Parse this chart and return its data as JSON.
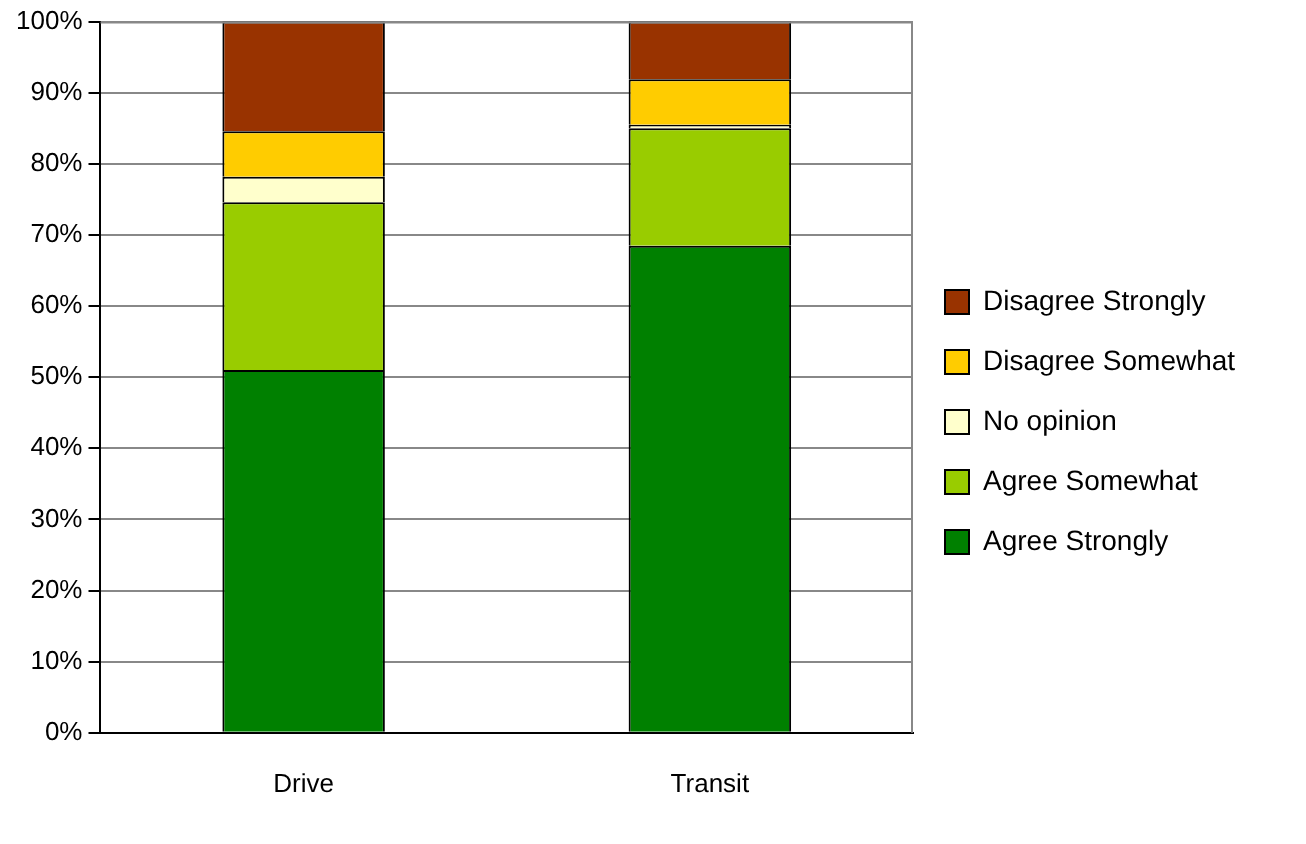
{
  "chart_data": {
    "type": "bar",
    "stacked": true,
    "categories": [
      "Drive",
      "Transit"
    ],
    "series": [
      {
        "name": "Agree Strongly",
        "color": "#008000",
        "values": [
          51,
          68.5
        ]
      },
      {
        "name": "Agree Somewhat",
        "color": "#99cc00",
        "values": [
          23.6,
          16.5
        ]
      },
      {
        "name": "No opinion",
        "color": "#ffffcc",
        "values": [
          3.6,
          0.5
        ]
      },
      {
        "name": "Disagree Somewhat",
        "color": "#ffcc00",
        "values": [
          6.4,
          6.4
        ]
      },
      {
        "name": "Disagree Strongly",
        "color": "#993300",
        "values": [
          15.4,
          8.1
        ]
      }
    ],
    "ylim": [
      0,
      100
    ],
    "yticks": [
      {
        "value": 0,
        "label": "0%"
      },
      {
        "value": 10,
        "label": "10%"
      },
      {
        "value": 20,
        "label": "20%"
      },
      {
        "value": 30,
        "label": "30%"
      },
      {
        "value": 40,
        "label": "40%"
      },
      {
        "value": 50,
        "label": "50%"
      },
      {
        "value": 60,
        "label": "60%"
      },
      {
        "value": 70,
        "label": "70%"
      },
      {
        "value": 80,
        "label": "80%"
      },
      {
        "value": 90,
        "label": "90%"
      },
      {
        "value": 100,
        "label": "100%"
      }
    ],
    "grid": "y",
    "legend": "right"
  }
}
